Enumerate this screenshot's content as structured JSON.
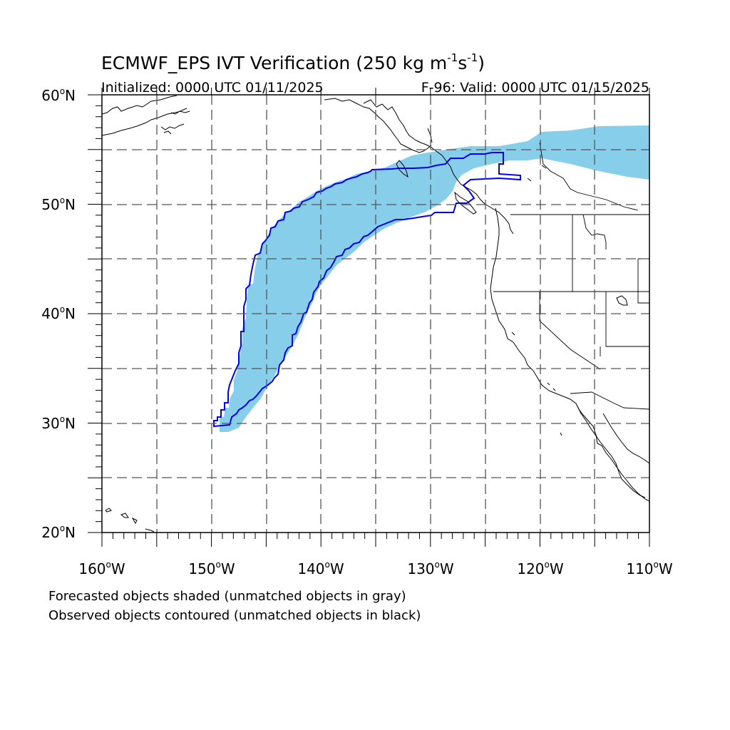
{
  "figure": {
    "title_main": "ECMWF_EPS IVT Verification (250 kg m",
    "title_sup1": "-1",
    "title_mid": "s",
    "title_sup2": "-1",
    "title_end": ")",
    "initialized": "Initialized: 0000 UTC 01/11/2025",
    "valid": "F-96: Valid: 0000 UTC 01/15/2025"
  },
  "axes": {
    "lat_labels": [
      {
        "num": "60",
        "hem": "N"
      },
      {
        "num": "50",
        "hem": "N"
      },
      {
        "num": "40",
        "hem": "N"
      },
      {
        "num": "30",
        "hem": "N"
      },
      {
        "num": "20",
        "hem": "N"
      }
    ],
    "lon_labels": [
      {
        "num": "160",
        "hem": "W"
      },
      {
        "num": "150",
        "hem": "W"
      },
      {
        "num": "140",
        "hem": "W"
      },
      {
        "num": "130",
        "hem": "W"
      },
      {
        "num": "120",
        "hem": "W"
      },
      {
        "num": "110",
        "hem": "W"
      }
    ],
    "lon_range": [
      -160,
      -110
    ],
    "lat_range": [
      20,
      60
    ]
  },
  "legend": {
    "line1": "Forecasted objects shaded (unmatched objects in gray)",
    "line2": "Observed objects contoured (unmatched objects in black)"
  },
  "colors": {
    "forecast_fill": "#87ceeb",
    "observed_contour": "#0000ee"
  }
}
